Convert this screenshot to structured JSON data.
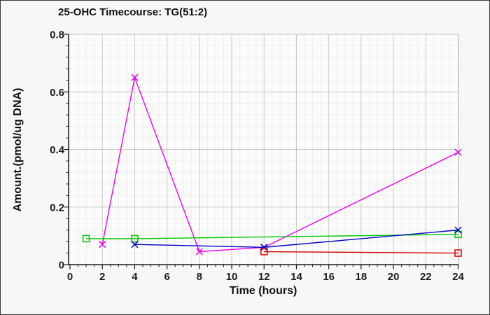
{
  "colors": {
    "figure_background": "#f7f7f7",
    "plot_background": "#fbfbfb",
    "grid_major": "#c9c9c9",
    "grid_minor": "#ededed",
    "plot_border": "#c0c0c0",
    "axis": "#1a1a1a",
    "tick_text": "#1c1c1c"
  },
  "chart_data": {
    "type": "line",
    "title": "25-OHC Timecourse: TG(51:2)",
    "xlabel": "Time (hours)",
    "ylabel": "Amount.(pmol/ug DNA)",
    "xlim": [
      0,
      24
    ],
    "ylim": [
      0,
      0.8
    ],
    "x_ticks": [
      0,
      2,
      4,
      6,
      8,
      10,
      12,
      14,
      16,
      18,
      20,
      22,
      24
    ],
    "y_ticks": [
      "0",
      "0.2",
      "0.4",
      "0.6",
      "0.8"
    ],
    "x_minor_step": 0.5,
    "y_minor_step": 0.04,
    "grid": true,
    "legend": "none",
    "series": [
      {
        "name": "magenta-series",
        "color": "#ee00ee",
        "marker": "x",
        "points": [
          [
            2,
            0.07
          ],
          [
            4,
            0.65
          ],
          [
            8,
            0.045
          ],
          [
            12,
            0.06
          ],
          [
            24,
            0.39
          ]
        ]
      },
      {
        "name": "green-series",
        "color": "#00c800",
        "marker": "square",
        "points": [
          [
            1,
            0.09
          ],
          [
            4,
            0.09
          ],
          [
            24,
            0.105
          ]
        ]
      },
      {
        "name": "blue-series",
        "color": "#0000c8",
        "marker": "x",
        "points": [
          [
            4,
            0.07
          ],
          [
            12,
            0.06
          ],
          [
            24,
            0.12
          ]
        ]
      },
      {
        "name": "red-series",
        "color": "#d40000",
        "marker": "square",
        "points": [
          [
            12,
            0.045
          ],
          [
            24,
            0.04
          ]
        ]
      }
    ]
  }
}
